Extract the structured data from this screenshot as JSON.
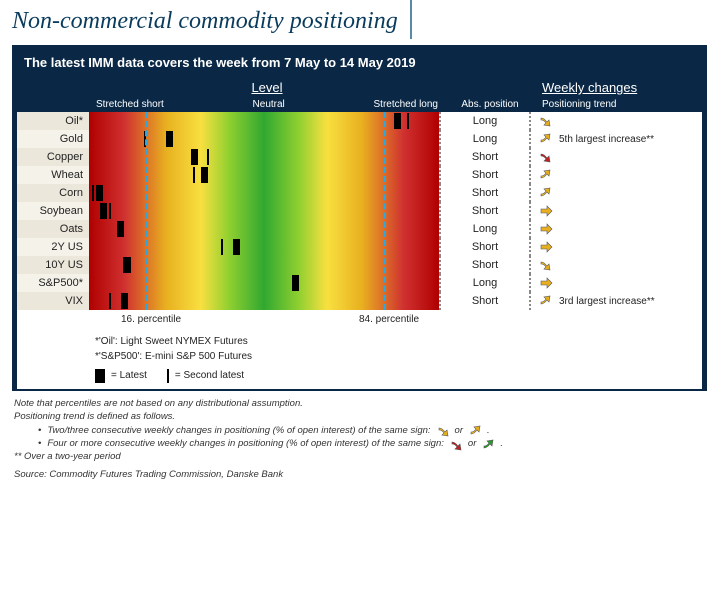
{
  "title": "Non-commercial commodity positioning",
  "panel_header": "The latest IMM data covers the week from 7 May to 14 May 2019",
  "headings": {
    "level": "Level",
    "weekly": "Weekly changes"
  },
  "subheadings": {
    "stretched_short": "Stretched short",
    "neutral": "Neutral",
    "stretched_long": "Stretched long",
    "abs": "Abs. position",
    "trend": "Positioning trend"
  },
  "percentile_lines": {
    "p16": 16,
    "p84": 84
  },
  "percentile_labels": {
    "p16": "16. percentile",
    "p84": "84. percentile"
  },
  "arrow_colors": {
    "down_weak": "#e8b020",
    "up_weak": "#e8b020",
    "right_weak": "#e8b020",
    "down_strong": "#c02020",
    "up_strong": "#2a9a2a"
  },
  "rows": [
    {
      "label": "Oil*",
      "latest_pct": 88,
      "second_pct": 91,
      "abs": "Long",
      "arrow": "down_weak",
      "note": ""
    },
    {
      "label": "Gold",
      "latest_pct": 23,
      "second_pct": 16,
      "abs": "Long",
      "arrow": "up_weak",
      "note": "5th largest increase**"
    },
    {
      "label": "Copper",
      "latest_pct": 30,
      "second_pct": 34,
      "abs": "Short",
      "arrow": "down_strong",
      "note": ""
    },
    {
      "label": "Wheat",
      "latest_pct": 33,
      "second_pct": 30,
      "abs": "Short",
      "arrow": "up_weak",
      "note": ""
    },
    {
      "label": "Corn",
      "latest_pct": 3,
      "second_pct": 1,
      "abs": "Short",
      "arrow": "up_weak",
      "note": ""
    },
    {
      "label": "Soybean",
      "latest_pct": 4,
      "second_pct": 6,
      "abs": "Short",
      "arrow": "right_weak",
      "note": ""
    },
    {
      "label": "Oats",
      "latest_pct": 9,
      "second_pct": 9,
      "abs": "Long",
      "arrow": "right_weak",
      "note": ""
    },
    {
      "label": "2Y US",
      "latest_pct": 42,
      "second_pct": 38,
      "abs": "Short",
      "arrow": "right_weak",
      "note": ""
    },
    {
      "label": "10Y US",
      "latest_pct": 11,
      "second_pct": 10,
      "abs": "Short",
      "arrow": "down_weak",
      "note": ""
    },
    {
      "label": "S&P500*",
      "latest_pct": 59,
      "second_pct": 59,
      "abs": "Long",
      "arrow": "right_weak",
      "note": ""
    },
    {
      "label": "VIX",
      "latest_pct": 10,
      "second_pct": 6,
      "abs": "Short",
      "arrow": "up_weak",
      "note": "3rd largest increase**"
    }
  ],
  "footnotes": {
    "oil": "*'Oil': Light Sweet NYMEX Futures",
    "sp": "*'S&P500': E-mini S&P 500 Futures",
    "latest": "= Latest",
    "second": "= Second latest"
  },
  "notes": {
    "l1": "Note that percentiles are not based on any distributional assumption.",
    "l2": "Positioning trend is defined as follows.",
    "b1": "Two/three consecutive weekly changes in positioning (% of open interest) of the same sign:",
    "b1_or": "or",
    "b2": "Four or more consecutive weekly changes in positioning (% of open interest) of the same sign:",
    "b2_or": "or",
    "over": "** Over a two-year period"
  },
  "source": "Source: Commodity Futures Trading Commission, Danske Bank"
}
